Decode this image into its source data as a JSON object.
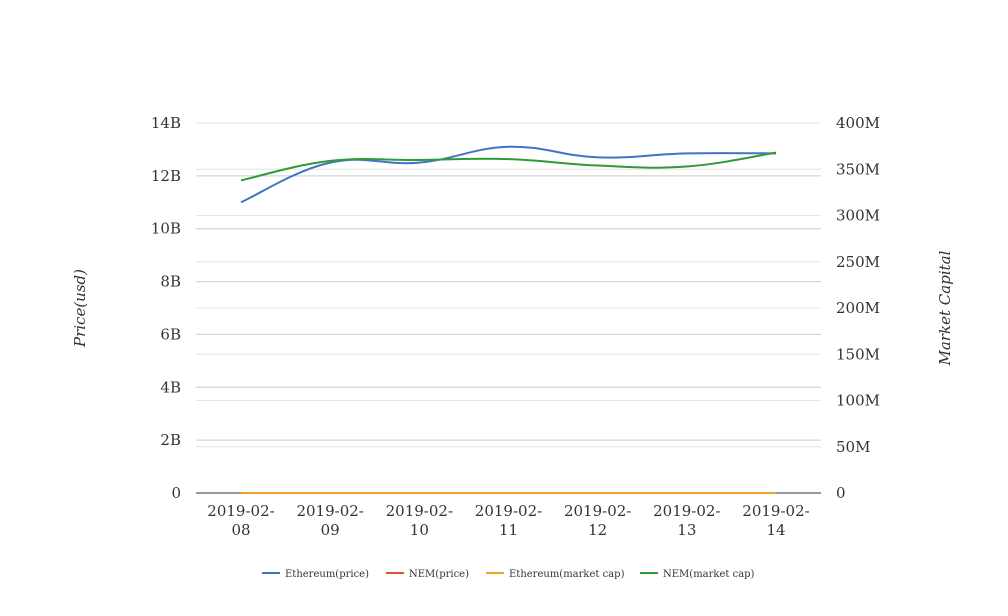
{
  "chart_data": {
    "type": "line",
    "x": [
      "2019-02-08",
      "2019-02-09",
      "2019-02-10",
      "2019-02-11",
      "2019-02-12",
      "2019-02-13",
      "2019-02-14"
    ],
    "x_tick_labels": [
      [
        "2019-02-",
        "08"
      ],
      [
        "2019-02-",
        "09"
      ],
      [
        "2019-02-",
        "10"
      ],
      [
        "2019-02-",
        "11"
      ],
      [
        "2019-02-",
        "12"
      ],
      [
        "2019-02-",
        "13"
      ],
      [
        "2019-02-",
        "14"
      ]
    ],
    "ylabel": "Price(usd)",
    "y2label": "Market Capital",
    "ylim": [
      0,
      14000000000
    ],
    "y2lim": [
      0,
      400000000
    ],
    "y_ticks": [
      0,
      2000000000,
      4000000000,
      6000000000,
      8000000000,
      10000000000,
      12000000000,
      14000000000
    ],
    "y_tick_labels": [
      "0",
      "2B",
      "4B",
      "6B",
      "8B",
      "10B",
      "12B",
      "14B"
    ],
    "y2_ticks": [
      0,
      50000000,
      100000000,
      150000000,
      200000000,
      250000000,
      300000000,
      350000000,
      400000000
    ],
    "y2_tick_labels": [
      "0",
      "50M",
      "100M",
      "150M",
      "200M",
      "250M",
      "300M",
      "350M",
      "400M"
    ],
    "grid": true,
    "legend": "bottom",
    "series": [
      {
        "name": "Ethereum(price)",
        "axis": "left",
        "color": "#4472c4",
        "values": [
          11000000000,
          12500000000,
          12500000000,
          13100000000,
          12700000000,
          12850000000,
          12850000000
        ]
      },
      {
        "name": "NEM(price)",
        "axis": "left",
        "color": "#e0522b",
        "values": [
          0.045,
          0.046,
          0.045,
          0.046,
          0.045,
          0.044,
          0.045
        ]
      },
      {
        "name": "Ethereum(market cap)",
        "axis": "left",
        "color": "#f2a22b",
        "values": [
          120,
          125,
          125,
          131,
          127,
          128,
          128
        ]
      },
      {
        "name": "NEM(market cap)",
        "axis": "right",
        "color": "#2e9a3a",
        "values": [
          338000000,
          359000000,
          360000000,
          361000000,
          354000000,
          353000000,
          368000000
        ]
      }
    ]
  }
}
